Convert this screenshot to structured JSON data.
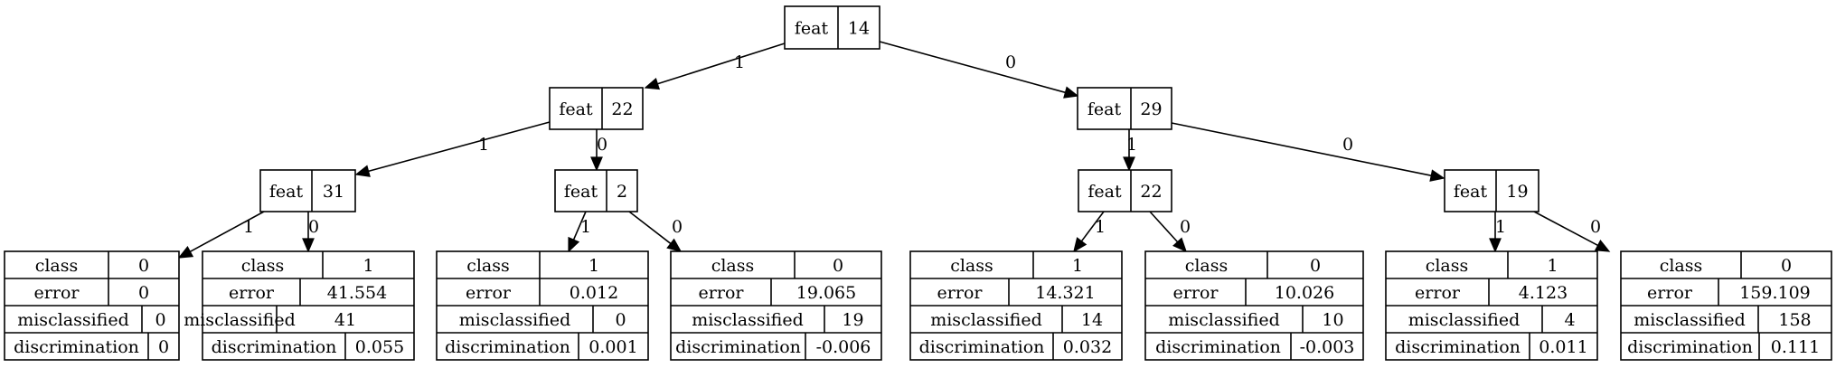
{
  "colors": {
    "line": "#000000",
    "node_fill": "#ffffff",
    "text": "#000000",
    "background": "#ffffff"
  },
  "internal_nodes": [
    {
      "id": "n0",
      "label": "feat",
      "value": "14"
    },
    {
      "id": "n1",
      "label": "feat",
      "value": "22"
    },
    {
      "id": "n2",
      "label": "feat",
      "value": "29"
    },
    {
      "id": "n3",
      "label": "feat",
      "value": "31"
    },
    {
      "id": "n4",
      "label": "feat",
      "value": "2"
    },
    {
      "id": "n5",
      "label": "feat",
      "value": "22"
    },
    {
      "id": "n6",
      "label": "feat",
      "value": "19"
    }
  ],
  "leaves": [
    {
      "id": "l0",
      "rows": [
        [
          "class",
          "0"
        ],
        [
          "error",
          "0"
        ],
        [
          "misclassified",
          "0"
        ],
        [
          "discrimination",
          "0"
        ]
      ]
    },
    {
      "id": "l1",
      "rows": [
        [
          "class",
          "1"
        ],
        [
          "error",
          "41.554"
        ],
        [
          "misclassified",
          "41"
        ],
        [
          "discrimination",
          "0.055"
        ]
      ]
    },
    {
      "id": "l2",
      "rows": [
        [
          "class",
          "1"
        ],
        [
          "error",
          "0.012"
        ],
        [
          "misclassified",
          "0"
        ],
        [
          "discrimination",
          "0.001"
        ]
      ]
    },
    {
      "id": "l3",
      "rows": [
        [
          "class",
          "0"
        ],
        [
          "error",
          "19.065"
        ],
        [
          "misclassified",
          "19"
        ],
        [
          "discrimination",
          "-0.006"
        ]
      ]
    },
    {
      "id": "l4",
      "rows": [
        [
          "class",
          "1"
        ],
        [
          "error",
          "14.321"
        ],
        [
          "misclassified",
          "14"
        ],
        [
          "discrimination",
          "0.032"
        ]
      ]
    },
    {
      "id": "l5",
      "rows": [
        [
          "class",
          "0"
        ],
        [
          "error",
          "10.026"
        ],
        [
          "misclassified",
          "10"
        ],
        [
          "discrimination",
          "-0.003"
        ]
      ]
    },
    {
      "id": "l6",
      "rows": [
        [
          "class",
          "1"
        ],
        [
          "error",
          "4.123"
        ],
        [
          "misclassified",
          "4"
        ],
        [
          "discrimination",
          "0.011"
        ]
      ]
    },
    {
      "id": "l7",
      "rows": [
        [
          "class",
          "0"
        ],
        [
          "error",
          "159.109"
        ],
        [
          "misclassified",
          "158"
        ],
        [
          "discrimination",
          "0.111"
        ]
      ]
    }
  ],
  "edges": [
    {
      "from": "n0",
      "to": "n1",
      "label": "1"
    },
    {
      "from": "n0",
      "to": "n2",
      "label": "0"
    },
    {
      "from": "n1",
      "to": "n3",
      "label": "1"
    },
    {
      "from": "n1",
      "to": "n4",
      "label": "0"
    },
    {
      "from": "n2",
      "to": "n5",
      "label": "1"
    },
    {
      "from": "n2",
      "to": "n6",
      "label": "0"
    },
    {
      "from": "n3",
      "to": "l0",
      "label": "1"
    },
    {
      "from": "n3",
      "to": "l1",
      "label": "0"
    },
    {
      "from": "n4",
      "to": "l2",
      "label": "1"
    },
    {
      "from": "n4",
      "to": "l3",
      "label": "0"
    },
    {
      "from": "n5",
      "to": "l4",
      "label": "1"
    },
    {
      "from": "n5",
      "to": "l5",
      "label": "0"
    },
    {
      "from": "n6",
      "to": "l6",
      "label": "1"
    },
    {
      "from": "n6",
      "to": "l7",
      "label": "0"
    }
  ]
}
